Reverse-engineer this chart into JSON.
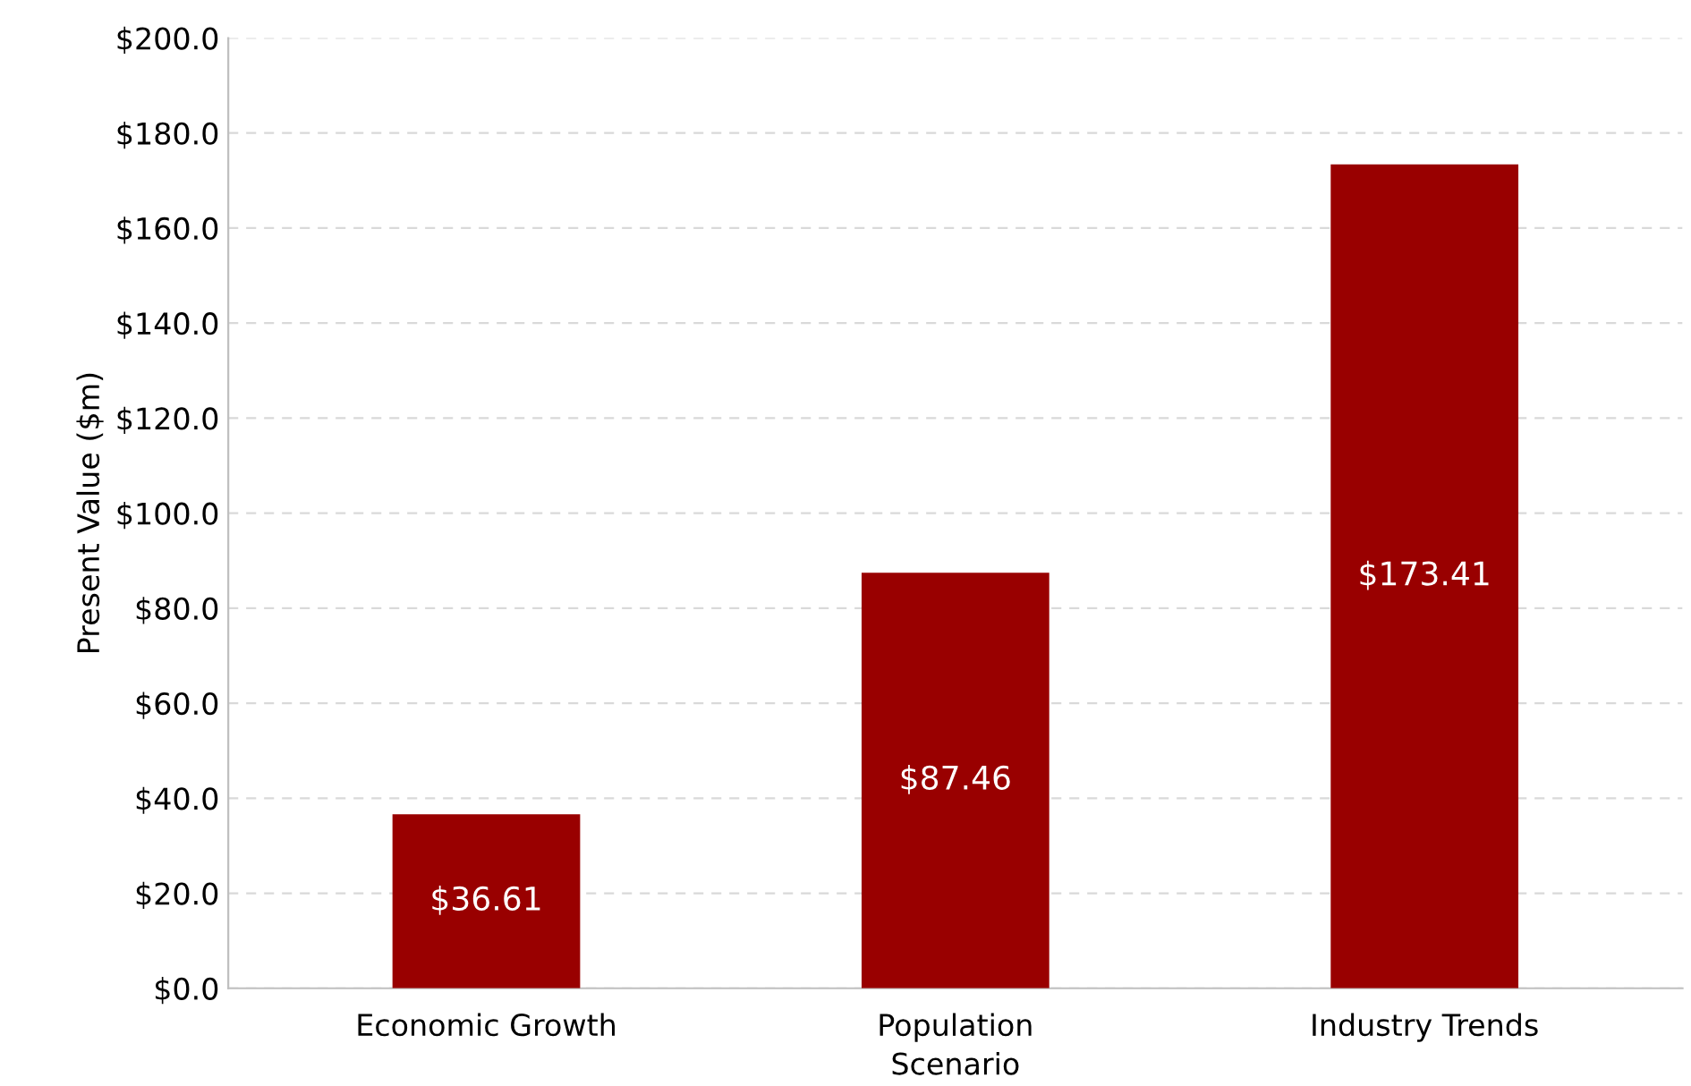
{
  "chart_data": {
    "type": "bar",
    "xlabel": "Scenario",
    "ylabel": "Present Value ($m)",
    "categories": [
      "Economic Growth",
      "Population",
      "Industry Trends"
    ],
    "values": [
      36.61,
      87.46,
      173.41
    ],
    "value_labels": [
      "$36.61",
      "$87.46",
      "$173.41"
    ],
    "color": "#990000",
    "ylim": [
      0,
      200
    ],
    "yticks": [
      {
        "value": 0,
        "label": "$0.0"
      },
      {
        "value": 20,
        "label": "$20.0"
      },
      {
        "value": 40,
        "label": "$40.0"
      },
      {
        "value": 60,
        "label": "$60.0"
      },
      {
        "value": 80,
        "label": "$80.0"
      },
      {
        "value": 100,
        "label": "$100.0"
      },
      {
        "value": 120,
        "label": "$120.0"
      },
      {
        "value": 140,
        "label": "$140.0"
      },
      {
        "value": 160,
        "label": "$160.0"
      },
      {
        "value": 180,
        "label": "$180.0"
      },
      {
        "value": 200,
        "label": "$200.0"
      }
    ],
    "grid": "y",
    "legend": false
  }
}
